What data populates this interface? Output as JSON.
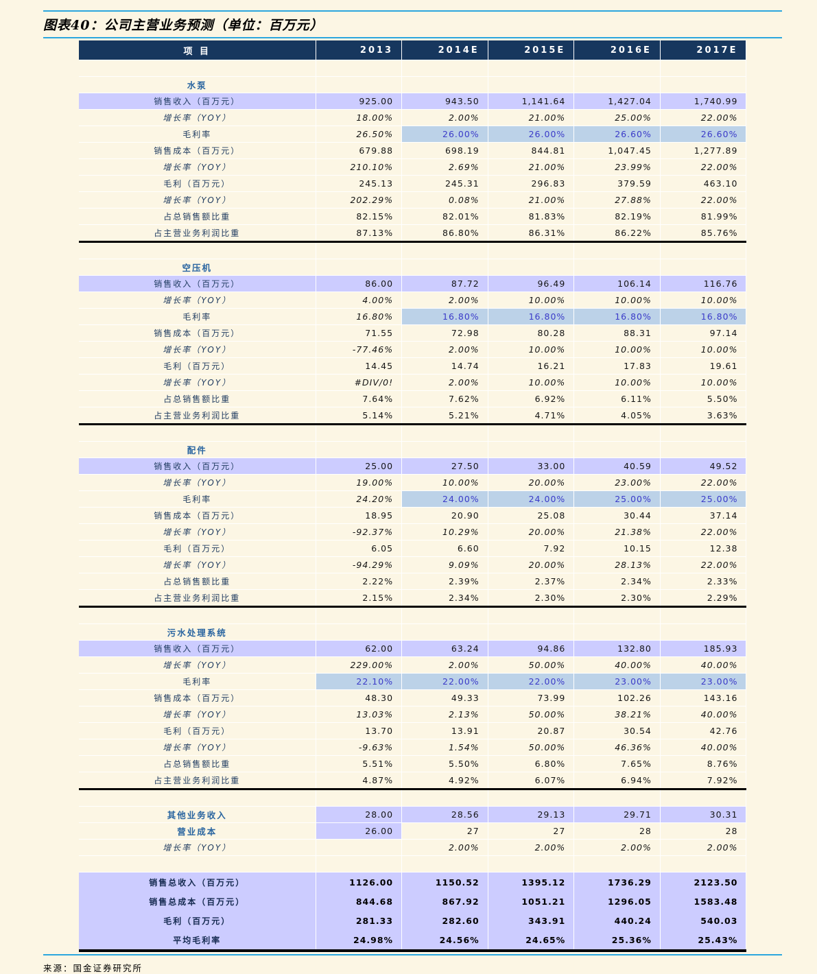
{
  "title": "图表40：公司主营业务预测（单位：百万元）",
  "source": "来源：国金证券研究所",
  "colors": {
    "page_bg": "#FCF6E4",
    "header_bg": "#17375E",
    "header_text": "#FFFFFF",
    "highlight_purple": "#CCCCFF",
    "highlight_blue_bg": "#BCD2E8",
    "highlight_blue_text": "#3A3AC8",
    "section_title_text": "#2A65A0",
    "rule_cyan": "#2BA6DE"
  },
  "table": {
    "columns": [
      "项  目",
      "2013",
      "2014E",
      "2015E",
      "2016E",
      "2017E"
    ],
    "sections": [
      {
        "name": "水泵",
        "rows": [
          {
            "label": "销售收入（百万元）",
            "style": "revenue",
            "values": [
              "925.00",
              "943.50",
              "1,141.64",
              "1,427.04",
              "1,740.99"
            ]
          },
          {
            "label": "增长率（YOY）",
            "style": "growth",
            "values": [
              "18.00%",
              "2.00%",
              "21.00%",
              "25.00%",
              "22.00%"
            ]
          },
          {
            "label": "毛利率",
            "style": "margin",
            "values": [
              "26.50%",
              "26.00%",
              "26.00%",
              "26.60%",
              "26.60%"
            ]
          },
          {
            "label": "销售成本（百万元）",
            "style": "plain",
            "values": [
              "679.88",
              "698.19",
              "844.81",
              "1,047.45",
              "1,277.89"
            ]
          },
          {
            "label": "增长率（YOY）",
            "style": "growth",
            "values": [
              "210.10%",
              "2.69%",
              "21.00%",
              "23.99%",
              "22.00%"
            ]
          },
          {
            "label": "毛利（百万元）",
            "style": "plain",
            "values": [
              "245.13",
              "245.31",
              "296.83",
              "379.59",
              "463.10"
            ]
          },
          {
            "label": "增长率（YOY）",
            "style": "growth",
            "values": [
              "202.29%",
              "0.08%",
              "21.00%",
              "27.88%",
              "22.00%"
            ]
          },
          {
            "label": "占总销售额比重",
            "style": "plain",
            "values": [
              "82.15%",
              "82.01%",
              "81.83%",
              "82.19%",
              "81.99%"
            ]
          },
          {
            "label": "占主营业务利润比重",
            "style": "plain",
            "values": [
              "87.13%",
              "86.80%",
              "86.31%",
              "86.22%",
              "85.76%"
            ]
          }
        ]
      },
      {
        "name": "空压机",
        "rows": [
          {
            "label": "销售收入（百万元）",
            "style": "revenue",
            "values": [
              "86.00",
              "87.72",
              "96.49",
              "106.14",
              "116.76"
            ]
          },
          {
            "label": "增长率（YOY）",
            "style": "growth",
            "values": [
              "4.00%",
              "2.00%",
              "10.00%",
              "10.00%",
              "10.00%"
            ]
          },
          {
            "label": "毛利率",
            "style": "margin",
            "values": [
              "16.80%",
              "16.80%",
              "16.80%",
              "16.80%",
              "16.80%"
            ]
          },
          {
            "label": "销售成本（百万元）",
            "style": "plain",
            "values": [
              "71.55",
              "72.98",
              "80.28",
              "88.31",
              "97.14"
            ]
          },
          {
            "label": "增长率（YOY）",
            "style": "growth",
            "values": [
              "-77.46%",
              "2.00%",
              "10.00%",
              "10.00%",
              "10.00%"
            ]
          },
          {
            "label": "毛利（百万元）",
            "style": "plain",
            "values": [
              "14.45",
              "14.74",
              "16.21",
              "17.83",
              "19.61"
            ]
          },
          {
            "label": "增长率（YOY）",
            "style": "growth",
            "values": [
              "#DIV/0!",
              "2.00%",
              "10.00%",
              "10.00%",
              "10.00%"
            ]
          },
          {
            "label": "占总销售额比重",
            "style": "plain",
            "values": [
              "7.64%",
              "7.62%",
              "6.92%",
              "6.11%",
              "5.50%"
            ]
          },
          {
            "label": "占主营业务利润比重",
            "style": "plain",
            "values": [
              "5.14%",
              "5.21%",
              "4.71%",
              "4.05%",
              "3.63%"
            ]
          }
        ]
      },
      {
        "name": "配件",
        "rows": [
          {
            "label": "销售收入（百万元）",
            "style": "revenue",
            "values": [
              "25.00",
              "27.50",
              "33.00",
              "40.59",
              "49.52"
            ]
          },
          {
            "label": "增长率（YOY）",
            "style": "growth",
            "values": [
              "19.00%",
              "10.00%",
              "20.00%",
              "23.00%",
              "22.00%"
            ]
          },
          {
            "label": "毛利率",
            "style": "margin",
            "values": [
              "24.20%",
              "24.00%",
              "24.00%",
              "25.00%",
              "25.00%"
            ]
          },
          {
            "label": "销售成本（百万元）",
            "style": "plain",
            "values": [
              "18.95",
              "20.90",
              "25.08",
              "30.44",
              "37.14"
            ]
          },
          {
            "label": "增长率（YOY）",
            "style": "growth",
            "values": [
              "-92.37%",
              "10.29%",
              "20.00%",
              "21.38%",
              "22.00%"
            ]
          },
          {
            "label": "毛利（百万元）",
            "style": "plain",
            "values": [
              "6.05",
              "6.60",
              "7.92",
              "10.15",
              "12.38"
            ]
          },
          {
            "label": "增长率（YOY）",
            "style": "growth",
            "values": [
              "-94.29%",
              "9.09%",
              "20.00%",
              "28.13%",
              "22.00%"
            ]
          },
          {
            "label": "占总销售额比重",
            "style": "plain",
            "values": [
              "2.22%",
              "2.39%",
              "2.37%",
              "2.34%",
              "2.33%"
            ]
          },
          {
            "label": "占主营业务利润比重",
            "style": "plain",
            "values": [
              "2.15%",
              "2.34%",
              "2.30%",
              "2.30%",
              "2.29%"
            ]
          }
        ]
      },
      {
        "name": "污水处理系统",
        "rows": [
          {
            "label": "销售收入（百万元）",
            "style": "revenue",
            "values": [
              "62.00",
              "63.24",
              "94.86",
              "132.80",
              "185.93"
            ]
          },
          {
            "label": "增长率（YOY）",
            "style": "growth",
            "values": [
              "229.00%",
              "2.00%",
              "50.00%",
              "40.00%",
              "40.00%"
            ]
          },
          {
            "label": "毛利率",
            "style": "margin_all",
            "values": [
              "22.10%",
              "22.00%",
              "22.00%",
              "23.00%",
              "23.00%"
            ]
          },
          {
            "label": "销售成本（百万元）",
            "style": "plain",
            "values": [
              "48.30",
              "49.33",
              "73.99",
              "102.26",
              "143.16"
            ]
          },
          {
            "label": "增长率（YOY）",
            "style": "growth",
            "values": [
              "13.03%",
              "2.13%",
              "50.00%",
              "38.21%",
              "40.00%"
            ]
          },
          {
            "label": "毛利（百万元）",
            "style": "plain",
            "values": [
              "13.70",
              "13.91",
              "20.87",
              "30.54",
              "42.76"
            ]
          },
          {
            "label": "增长率（YOY）",
            "style": "growth",
            "values": [
              "-9.63%",
              "1.54%",
              "50.00%",
              "46.36%",
              "40.00%"
            ]
          },
          {
            "label": "占总销售额比重",
            "style": "plain",
            "values": [
              "5.51%",
              "5.50%",
              "6.80%",
              "7.65%",
              "8.76%"
            ]
          },
          {
            "label": "占主营业务利润比重",
            "style": "plain",
            "values": [
              "4.87%",
              "4.92%",
              "6.07%",
              "6.94%",
              "7.92%"
            ]
          }
        ]
      }
    ],
    "other_rows": [
      {
        "label": "其他业务收入",
        "style": "other_all",
        "values": [
          "28.00",
          "28.56",
          "29.13",
          "29.71",
          "30.31"
        ]
      },
      {
        "label": "营业成本",
        "style": "other_first",
        "values": [
          "26.00",
          "27",
          "27",
          "28",
          "28"
        ]
      },
      {
        "label": "增长率（YOY）",
        "style": "growth",
        "values": [
          "",
          "2.00%",
          "2.00%",
          "2.00%",
          "2.00%"
        ]
      }
    ],
    "summary_rows": [
      {
        "label": "销售总收入（百万元）",
        "values": [
          "1126.00",
          "1150.52",
          "1395.12",
          "1736.29",
          "2123.50"
        ]
      },
      {
        "label": "销售总成本（百万元）",
        "values": [
          "844.68",
          "867.92",
          "1051.21",
          "1296.05",
          "1583.48"
        ]
      },
      {
        "label": "毛利（百万元）",
        "values": [
          "281.33",
          "282.60",
          "343.91",
          "440.24",
          "540.03"
        ]
      },
      {
        "label": "平均毛利率",
        "values": [
          "24.98%",
          "24.56%",
          "24.65%",
          "25.36%",
          "25.43%"
        ]
      }
    ]
  }
}
